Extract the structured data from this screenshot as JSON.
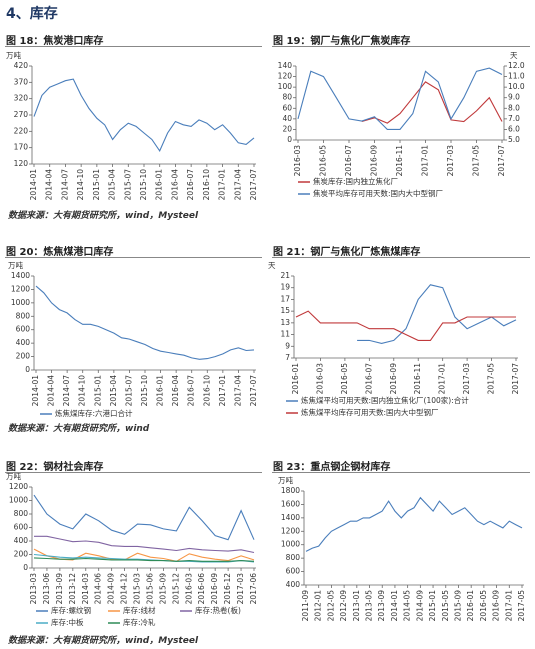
{
  "header": {
    "title": "4、库存"
  },
  "sources": [
    "数据来源：大有期货研究所，wind，Mysteel",
    "数据来源：大有期货研究所，wind",
    "数据来源：大有期货研究所，wind，Mysteel"
  ],
  "chart_data": [
    {
      "type": "line",
      "title": "图 18：焦炭港口库存",
      "y_unit": "万吨",
      "categories": [
        "2014-01",
        null,
        "2014-04",
        null,
        "2014-07",
        null,
        "2014-10",
        null,
        "2015-01",
        null,
        "2015-04",
        null,
        "2015-07",
        null,
        "2015-10",
        null,
        "2016-01",
        null,
        "2016-04",
        null,
        "2016-07",
        null,
        "2016-10",
        null,
        "2017-01",
        null,
        "2017-04",
        null,
        "2017-07"
      ],
      "series": [
        {
          "name": "焦炭港口库存",
          "color": "#4a7ebb",
          "values": [
            265,
            330,
            355,
            365,
            375,
            380,
            330,
            290,
            260,
            240,
            195,
            225,
            245,
            235,
            215,
            195,
            160,
            215,
            250,
            240,
            235,
            255,
            245,
            225,
            240,
            215,
            185,
            180,
            200
          ]
        }
      ],
      "ylim": [
        120,
        420
      ],
      "yticks": [
        120,
        170,
        220,
        270,
        320,
        370,
        420
      ]
    },
    {
      "type": "line",
      "title": "图 19：钢厂与焦化厂焦炭库存",
      "y2_unit": "天",
      "categories": [
        "2016-03",
        null,
        "2016-05",
        null,
        "2016-07",
        null,
        "2016-09",
        null,
        "2016-11",
        null,
        "2017-01",
        null,
        "2017-03",
        null,
        "2017-05",
        null,
        "2017-07"
      ],
      "series": [
        {
          "name": "焦炭库存:国内独立焦化厂",
          "color": "#c0393b",
          "values": [
            null,
            null,
            null,
            null,
            null,
            35,
            42,
            32,
            50,
            80,
            110,
            95,
            38,
            35,
            55,
            80,
            35
          ]
        },
        {
          "name": "焦炭平均库存可用天数:国内大中型钢厂",
          "color": "#4a7ebb",
          "axis": "y2",
          "values": [
            7.0,
            11.5,
            11.0,
            9.0,
            7.0,
            6.8,
            7.2,
            6.0,
            6.0,
            7.5,
            11.5,
            10.5,
            7.0,
            9.0,
            11.5,
            11.8,
            11.2
          ]
        }
      ],
      "ylim": [
        0,
        140
      ],
      "yticks": [
        0,
        20,
        40,
        60,
        80,
        100,
        120,
        140
      ],
      "y2lim": [
        5,
        12
      ],
      "y2ticks": [
        {
          "value": 5,
          "label": "5.0"
        },
        {
          "value": 6,
          "label": "6.0"
        },
        {
          "value": 7,
          "label": "7.0"
        },
        {
          "value": 8,
          "label": "8.0"
        },
        {
          "value": 9,
          "label": "9.0"
        },
        {
          "value": 10,
          "label": "10.0"
        },
        {
          "value": 11,
          "label": "11.0"
        },
        {
          "value": 12,
          "label": "12.0"
        }
      ]
    },
    {
      "type": "line",
      "title": "图 20：炼焦煤港口库存",
      "y_unit": "万吨",
      "categories": [
        "2014-01",
        null,
        "2014-04",
        null,
        "2014-07",
        null,
        "2014-10",
        null,
        "2015-01",
        null,
        "2015-04",
        null,
        "2015-07",
        null,
        "2015-10",
        null,
        "2016-01",
        null,
        "2016-04",
        null,
        "2016-07",
        null,
        "2016-10",
        null,
        "2017-01",
        null,
        "2017-04",
        null,
        "2017-07"
      ],
      "series": [
        {
          "name": "炼焦煤库存:六港口合计",
          "color": "#4a7ebb",
          "values": [
            1250,
            1150,
            1000,
            900,
            850,
            750,
            680,
            680,
            650,
            600,
            550,
            480,
            460,
            420,
            380,
            320,
            280,
            260,
            240,
            220,
            180,
            160,
            170,
            200,
            240,
            300,
            330,
            290,
            300
          ]
        }
      ],
      "ylim": [
        0,
        1400
      ],
      "yticks": [
        0,
        200,
        400,
        600,
        800,
        1000,
        1200,
        1400
      ]
    },
    {
      "type": "line",
      "title": "图 21：钢厂与焦化厂炼焦煤库存",
      "y_unit": "天",
      "categories": [
        "2016-01",
        null,
        "2016-03",
        null,
        "2016-05",
        null,
        "2016-07",
        null,
        "2016-09",
        null,
        "2016-11",
        null,
        "2017-01",
        null,
        "2017-03",
        null,
        "2017-05",
        null,
        "2017-07"
      ],
      "series": [
        {
          "name": "炼焦煤平均可用天数:国内独立焦化厂(100家):合计",
          "color": "#4a7ebb",
          "values": [
            null,
            null,
            null,
            null,
            null,
            10,
            10,
            9.5,
            10,
            12,
            17,
            19.5,
            19,
            14,
            12,
            13,
            14,
            12.5,
            13.5
          ]
        },
        {
          "name": "炼焦煤平均库存可用天数:国内大中型钢厂",
          "color": "#c0393b",
          "values": [
            14,
            15,
            13,
            13,
            13,
            13,
            12,
            12,
            12,
            11,
            10,
            10,
            13,
            13,
            14,
            14,
            14,
            14,
            14
          ]
        }
      ],
      "ylim": [
        7,
        21
      ],
      "yticks": [
        7,
        9,
        11,
        13,
        15,
        17,
        19,
        21
      ]
    },
    {
      "type": "line",
      "title": "图 22：钢材社会库存",
      "y_unit": "万吨",
      "categories": [
        "2013-03",
        "2013-06",
        "2013-09",
        "2013-12",
        "2014-03",
        "2014-06",
        "2014-09",
        "2014-12",
        "2015-03",
        "2015-06",
        "2015-09",
        "2015-12",
        "2016-03",
        "2016-06",
        "2016-09",
        "2016-12",
        "2017-03",
        "2017-06"
      ],
      "series": [
        {
          "name": "库存:螺纹钢",
          "color": "#4a7ebb",
          "values": [
            1080,
            800,
            650,
            580,
            800,
            700,
            560,
            500,
            650,
            640,
            580,
            550,
            900,
            700,
            480,
            420,
            850,
            420
          ]
        },
        {
          "name": "库存:线材",
          "color": "#f79646",
          "values": [
            280,
            180,
            130,
            120,
            220,
            180,
            130,
            120,
            220,
            160,
            140,
            100,
            210,
            160,
            130,
            110,
            180,
            120
          ]
        },
        {
          "name": "库存:热卷(板)",
          "color": "#8064a2",
          "values": [
            470,
            470,
            430,
            390,
            400,
            380,
            330,
            320,
            320,
            300,
            280,
            260,
            290,
            270,
            260,
            250,
            270,
            230
          ]
        },
        {
          "name": "库存:中板",
          "color": "#4bacc6",
          "values": [
            200,
            180,
            160,
            150,
            160,
            150,
            140,
            130,
            130,
            120,
            110,
            100,
            100,
            90,
            90,
            90,
            110,
            90
          ]
        },
        {
          "name": "库存:冷轧",
          "color": "#2e8b57",
          "values": [
            150,
            140,
            130,
            130,
            140,
            130,
            120,
            120,
            120,
            110,
            110,
            100,
            110,
            100,
            100,
            100,
            110,
            100
          ]
        }
      ],
      "ylim": [
        0,
        1200
      ],
      "yticks": [
        0,
        200,
        400,
        600,
        800,
        1000,
        1200
      ]
    },
    {
      "type": "line",
      "title": "图 23：重点钢企钢材库存",
      "y_unit": "万吨",
      "categories": [
        "2011-09",
        null,
        "2012-01",
        null,
        "2012-05",
        null,
        "2012-09",
        null,
        "2013-01",
        null,
        "2013-05",
        null,
        "2013-09",
        null,
        "2014-01",
        null,
        "2014-05",
        null,
        "2014-09",
        null,
        "2015-01",
        null,
        "2015-05",
        null,
        "2015-09",
        null,
        "2016-01",
        null,
        "2016-05",
        null,
        "2016-09",
        null,
        "2017-01",
        null,
        "2017-05"
      ],
      "series": [
        {
          "name": "重点钢企钢材库存",
          "color": "#4a7ebb",
          "values": [
            900,
            950,
            980,
            1100,
            1200,
            1250,
            1300,
            1350,
            1350,
            1400,
            1400,
            1450,
            1500,
            1650,
            1500,
            1400,
            1500,
            1550,
            1700,
            1600,
            1500,
            1650,
            1550,
            1450,
            1500,
            1550,
            1450,
            1350,
            1300,
            1350,
            1300,
            1250,
            1350,
            1300,
            1250
          ]
        }
      ],
      "ylim": [
        400,
        1800
      ],
      "yticks": [
        400,
        600,
        800,
        1000,
        1200,
        1400,
        1600,
        1800
      ]
    }
  ]
}
